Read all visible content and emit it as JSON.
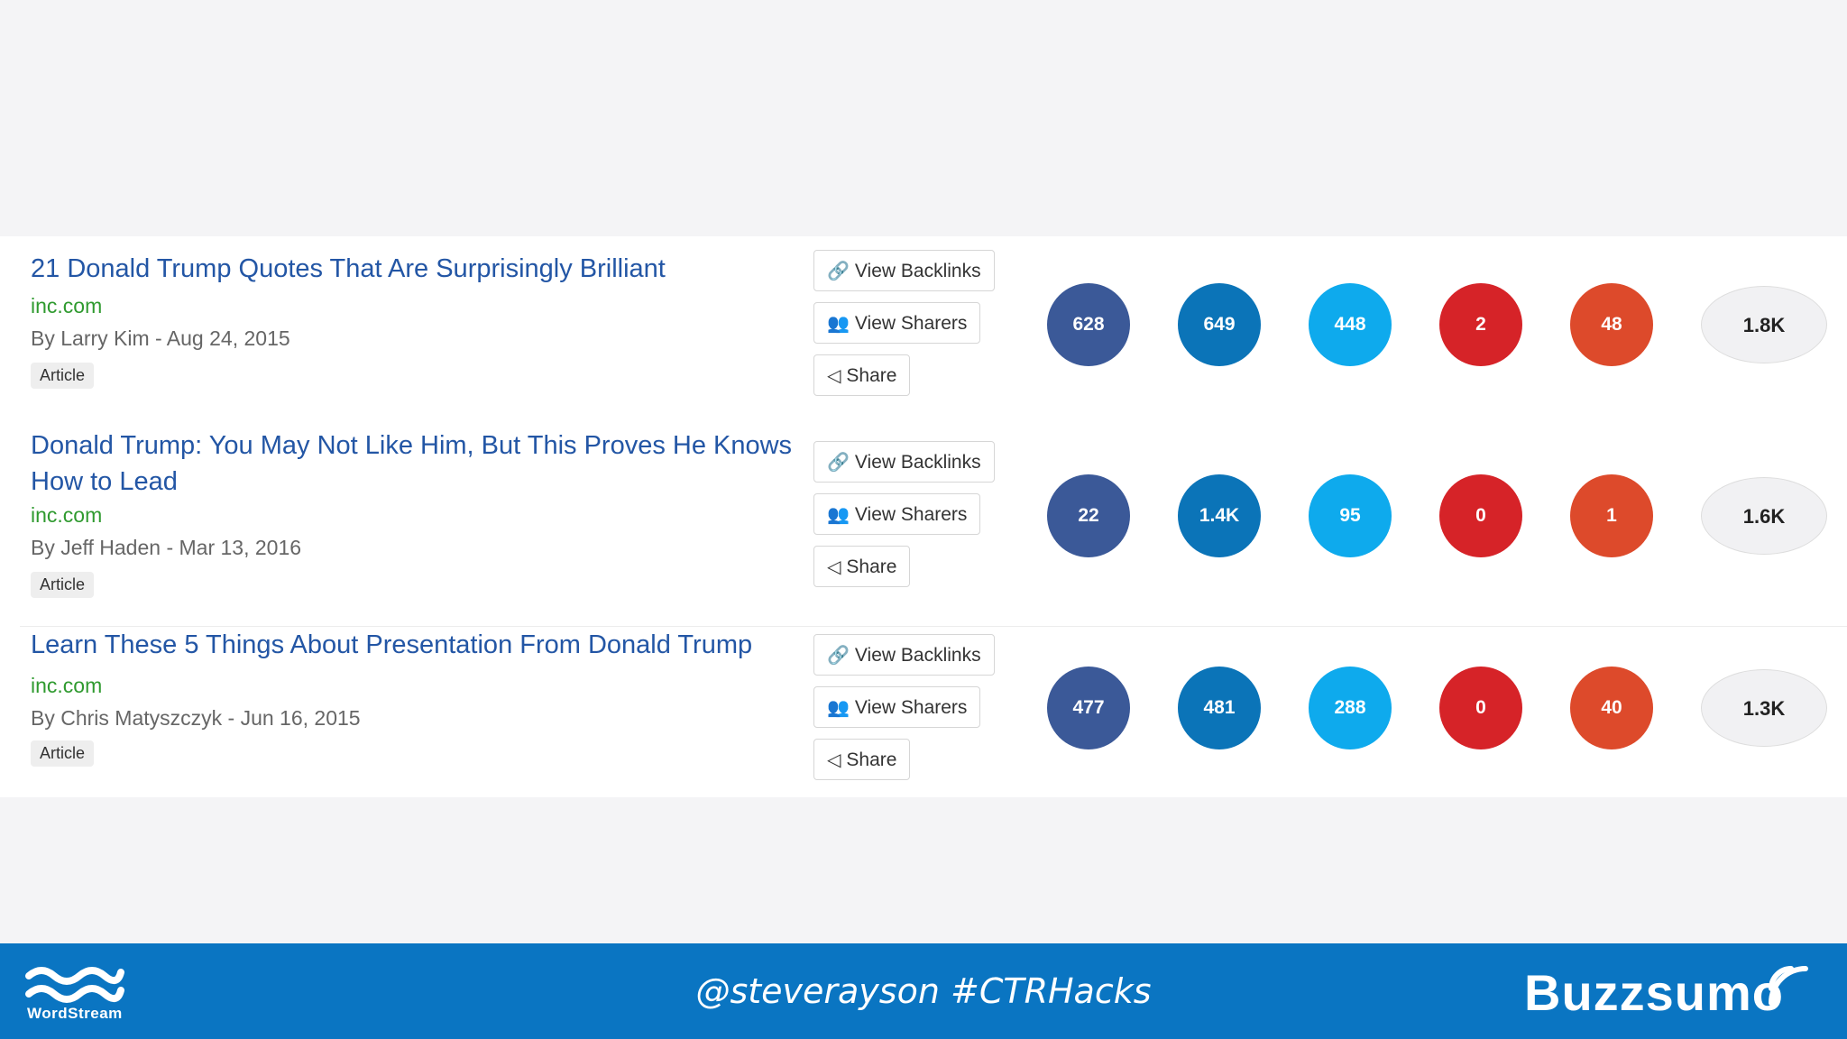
{
  "buttons": {
    "backlinks": "View Backlinks",
    "sharers": "View Sharers",
    "share": "Share"
  },
  "colors": {
    "facebook": "#3b5998",
    "linkedin": "#0b74b8",
    "twitter": "#0eaaed",
    "pinterest": "#d62328",
    "googleplus": "#dd4a2b",
    "link": "#2356a5",
    "domain": "#2f9a2f",
    "footer": "#0a75c2"
  },
  "results": [
    {
      "title": "21 Donald Trump Quotes That Are Surprisingly Brilliant",
      "domain": "inc.com",
      "byline": "By Larry Kim - Aug 24, 2015",
      "type": "Article",
      "counts": [
        "628",
        "649",
        "448",
        "2",
        "48"
      ],
      "total": "1.8K"
    },
    {
      "title": "Donald Trump: You May Not Like Him, But This Proves He Knows How to Lead",
      "domain": "inc.com",
      "byline": "By Jeff Haden - Mar 13, 2016",
      "type": "Article",
      "counts": [
        "22",
        "1.4K",
        "95",
        "0",
        "1"
      ],
      "total": "1.6K"
    },
    {
      "title": "Learn These 5 Things About Presentation From Donald Trump",
      "domain": "inc.com",
      "byline": "By Chris Matyszczyk - Jun 16, 2015",
      "type": "Article",
      "counts": [
        "477",
        "481",
        "288",
        "0",
        "40"
      ],
      "total": "1.3K"
    }
  ],
  "footer": {
    "left_logo_text": "WordStream",
    "handle": "@steverayson #CTRHacks",
    "right_logo_text": "Buzzsumo"
  }
}
